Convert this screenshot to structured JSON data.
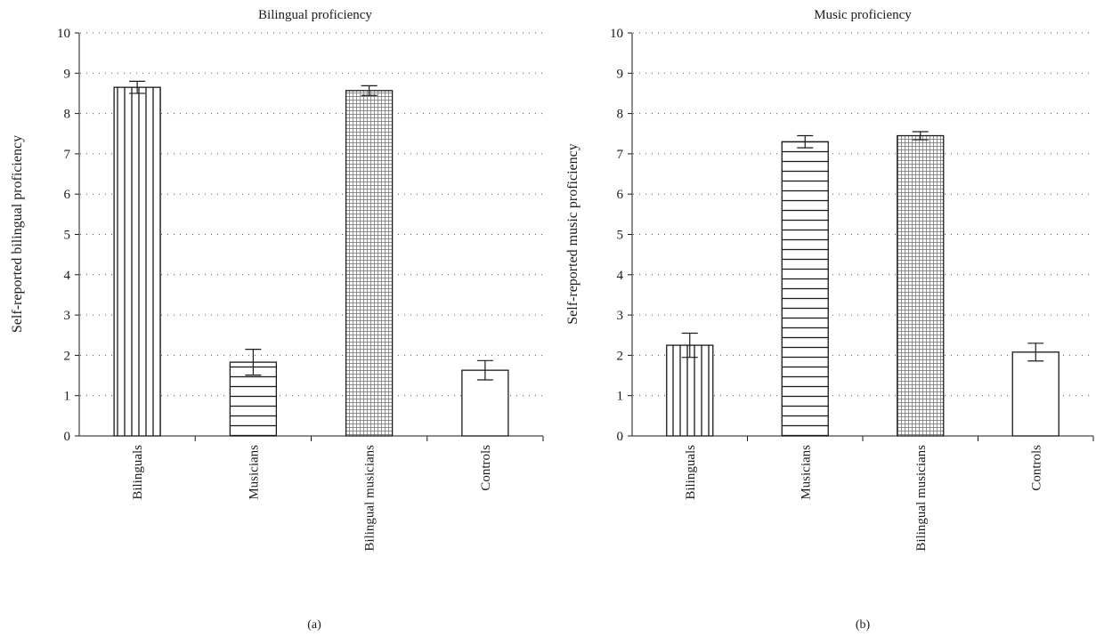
{
  "chart_data": [
    {
      "type": "bar",
      "title": "Bilingual proficiency",
      "ylabel": "Self-reported bilingual proficiency",
      "xlabel": "",
      "panel_label": "(a)",
      "categories": [
        "Bilinguals",
        "Musicians",
        "Bilingual musicians",
        "Controls"
      ],
      "values": [
        8.65,
        1.83,
        8.57,
        1.63
      ],
      "errors": [
        0.15,
        0.32,
        0.12,
        0.24
      ],
      "yticks": [
        "0",
        "1",
        "2",
        "3",
        "4",
        "5",
        "6",
        "7",
        "8",
        "9",
        "10"
      ],
      "ylim": [
        0,
        10
      ],
      "grid": true,
      "patterns": [
        "vertical",
        "horizontal",
        "grid",
        "none"
      ]
    },
    {
      "type": "bar",
      "title": "Music proficiency",
      "ylabel": "Self-reported music proficiency",
      "xlabel": "",
      "panel_label": "(b)",
      "categories": [
        "Bilinguals",
        "Musicians",
        "Bilingual musicians",
        "Controls"
      ],
      "values": [
        2.25,
        7.3,
        7.45,
        2.08
      ],
      "errors": [
        0.3,
        0.15,
        0.1,
        0.22
      ],
      "yticks": [
        "0",
        "1",
        "2",
        "3",
        "4",
        "5",
        "6",
        "7",
        "8",
        "9",
        "10"
      ],
      "ylim": [
        0,
        10
      ],
      "grid": true,
      "patterns": [
        "vertical",
        "horizontal",
        "grid",
        "none"
      ]
    }
  ]
}
